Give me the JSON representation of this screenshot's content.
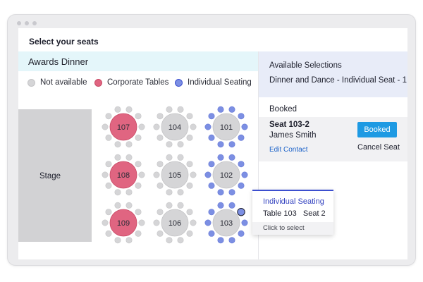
{
  "header": {
    "title": "Select your seats"
  },
  "event": {
    "name": "Awards Dinner"
  },
  "legend": {
    "items": [
      {
        "label": "Not available",
        "color": "#d5d5d7",
        "border": "#c4c4c6"
      },
      {
        "label": "Corporate Tables",
        "color": "#e06581",
        "border": "#c94a66"
      },
      {
        "label": "Individual Seating",
        "color": "#7c8fe3",
        "border": "#3c4fcf"
      }
    ]
  },
  "stage": {
    "label": "Stage"
  },
  "tables": [
    {
      "number": "107",
      "type": "corporate"
    },
    {
      "number": "104",
      "type": "unavailable"
    },
    {
      "number": "101",
      "type": "individual"
    },
    {
      "number": "108",
      "type": "corporate"
    },
    {
      "number": "105",
      "type": "unavailable"
    },
    {
      "number": "102",
      "type": "individual"
    },
    {
      "number": "109",
      "type": "corporate"
    },
    {
      "number": "106",
      "type": "unavailable"
    },
    {
      "number": "103",
      "type": "individual",
      "selected_seat": 2
    }
  ],
  "colors": {
    "corporate_table": "#e06581",
    "corporate_chair": "#d5d5d7",
    "unavailable_table": "#d5d5d7",
    "unavailable_chair": "#d5d5d7",
    "individual_table": "#d5d5d7",
    "individual_chair": "#7c8fe3",
    "selected_chair": "#3c4fcf",
    "table_text": "#2a2c36"
  },
  "sidebar": {
    "available_title": "Available Selections",
    "available_detail": "Dinner and Dance - Individual Seat - 1",
    "booked_title": "Booked",
    "booking": {
      "seat": "Seat 103-2",
      "name": "James Smith",
      "edit_label": "Edit Contact",
      "status_button": "Booked",
      "cancel_label": "Cancel Seat"
    }
  },
  "tooltip": {
    "title": "Individual Seating",
    "detail": "Table 103   Seat 2",
    "hint": "Click to select"
  }
}
